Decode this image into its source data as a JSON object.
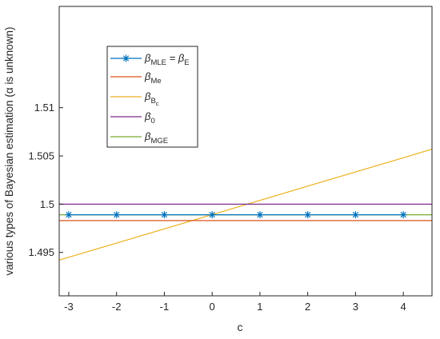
{
  "chart_data": {
    "type": "line",
    "xlabel": "c",
    "ylabel": "various types of Bayesian estimation (α is unknown)",
    "xlim": [
      -3.2,
      4.6
    ],
    "ylim": [
      1.4905,
      1.5205
    ],
    "xticks": [
      -3,
      -2,
      -1,
      0,
      1,
      2,
      3,
      4
    ],
    "xtick_labels": [
      "-3",
      "-2",
      "-1",
      "0",
      "1",
      "2",
      "3",
      "4"
    ],
    "yticks": [
      1.495,
      1.5,
      1.505,
      1.51
    ],
    "ytick_labels": [
      "1.495",
      "1.5",
      "1.505",
      "1.51"
    ],
    "grid": false,
    "legend_position": "upper-left",
    "series": [
      {
        "name_parts": [
          [
            "β",
            "main"
          ],
          [
            "MLE",
            "sub"
          ],
          [
            " = ",
            "main"
          ],
          [
            "β",
            "main"
          ],
          [
            "E",
            "sub"
          ]
        ],
        "color": "#0072BD",
        "marker": "asterisk",
        "x": [
          -3,
          -2,
          -1,
          0,
          1,
          2,
          3,
          4
        ],
        "y": [
          1.4989,
          1.4989,
          1.4989,
          1.4989,
          1.4989,
          1.4989,
          1.4989,
          1.4989
        ]
      },
      {
        "name_parts": [
          [
            "β",
            "main"
          ],
          [
            "Me",
            "sub"
          ]
        ],
        "color": "#D95319",
        "marker": "none",
        "x": [
          -3.2,
          4.6
        ],
        "y": [
          1.4983,
          1.4983
        ]
      },
      {
        "name_parts": [
          [
            "β",
            "main"
          ],
          [
            "B",
            "sub"
          ],
          [
            "c",
            "subsub"
          ]
        ],
        "color": "#EDB120",
        "marker": "none",
        "x": [
          -3.2,
          4.6
        ],
        "y": [
          1.4942,
          1.5057
        ]
      },
      {
        "name_parts": [
          [
            "β",
            "main"
          ],
          [
            "0",
            "sub"
          ]
        ],
        "color": "#7E2F8E",
        "marker": "none",
        "x": [
          -3.2,
          4.6
        ],
        "y": [
          1.5,
          1.5
        ]
      },
      {
        "name_parts": [
          [
            "β",
            "main"
          ],
          [
            "MGE",
            "sub"
          ]
        ],
        "color": "#77AC30",
        "marker": "none",
        "x": [
          -3.2,
          4.6
        ],
        "y": [
          1.4989,
          1.4989
        ]
      }
    ]
  }
}
